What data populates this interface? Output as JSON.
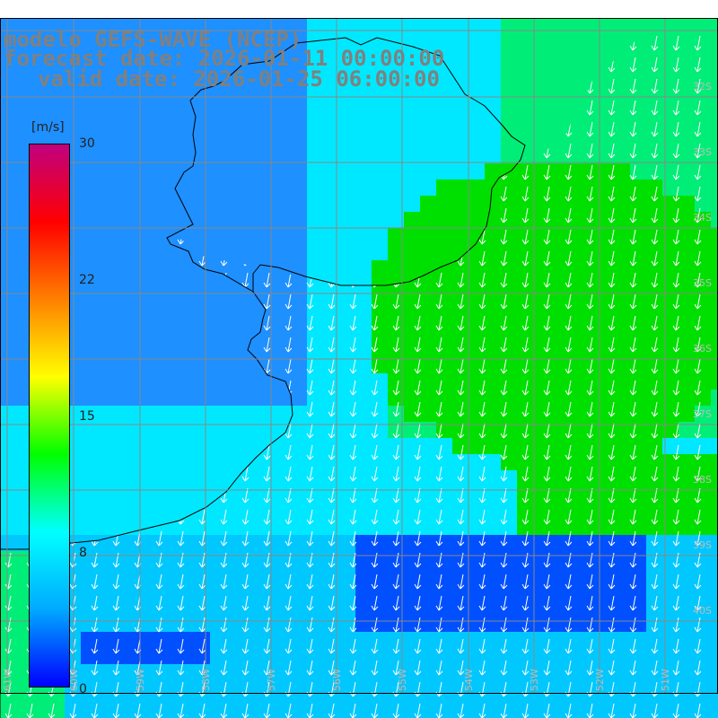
{
  "title": {
    "line1": "modelo GEFS-WAVE (NCEP)",
    "line2": "forecast date: 2026-01-11 00:00:00",
    "line3": "valid date: 2026-01-25 06:00:00"
  },
  "colorbar": {
    "unit": "[m/s]",
    "ticks": [
      {
        "label": "30",
        "value": 30
      },
      {
        "label": "22",
        "value": 22
      },
      {
        "label": "15",
        "value": 15
      },
      {
        "label": "8",
        "value": 8
      },
      {
        "label": "0",
        "value": 0
      }
    ],
    "range": [
      0,
      30
    ],
    "colors": [
      "#0000ff",
      "#00aaff",
      "#00ffff",
      "#00ff00",
      "#ffff00",
      "#ff8000",
      "#ff0000",
      "#c0007f"
    ]
  },
  "map": {
    "lat_labels": [
      "32S",
      "33S",
      "34S",
      "35S",
      "36S",
      "37S",
      "38S",
      "39S",
      "40S"
    ],
    "lon_labels": [
      "61W",
      "60W",
      "59W",
      "58W",
      "57W",
      "56W",
      "55W",
      "54W",
      "53W",
      "52W",
      "51W"
    ],
    "field_colors": {
      "coast_blue": "#1e90ff",
      "deep_blue": "#0050ff",
      "cyan": "#00e8ff",
      "sea_green": "#00ee77",
      "green": "#00e000",
      "land": "#ffffff"
    },
    "vector_color": "#ffffff"
  }
}
